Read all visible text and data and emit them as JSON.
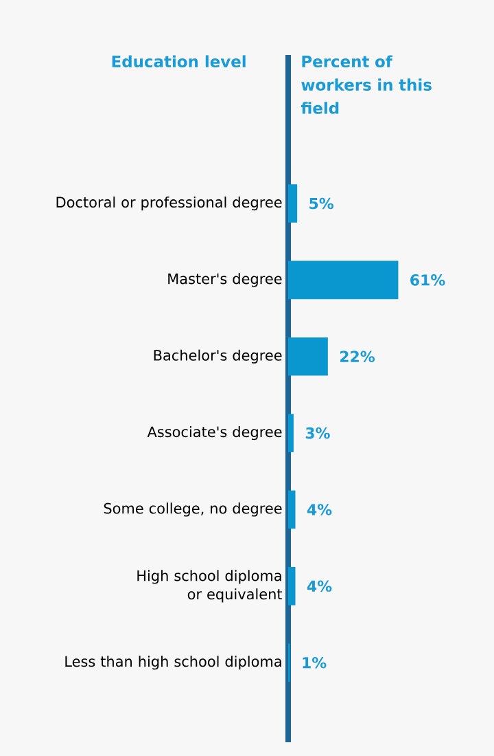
{
  "chart_data": {
    "type": "bar",
    "orientation": "horizontal",
    "annotations": [
      "Education level"
    ],
    "xlabel": "Percent of workers in this field",
    "categories": [
      "Doctoral or professional degree",
      "Master's degree",
      "Bachelor's degree",
      "Associate's degree",
      "Some college, no degree",
      "High school diploma or equivalent",
      "Less than high school diploma"
    ],
    "values": [
      5,
      61,
      22,
      3,
      4,
      4,
      1
    ],
    "value_labels": [
      "5%",
      "61%",
      "22%",
      "3%",
      "4%",
      "4%",
      "1%"
    ],
    "color": "#0a96cf"
  }
}
